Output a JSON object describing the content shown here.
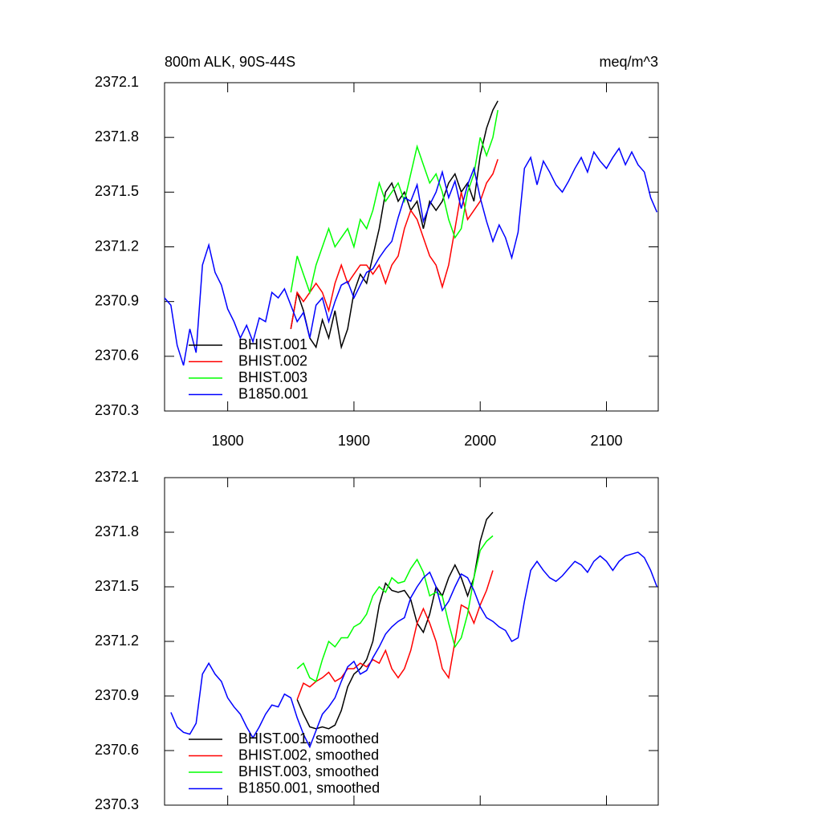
{
  "chart_data": [
    {
      "type": "line",
      "title": "800m ALK, 90S-44S",
      "units": "meq/m^3",
      "xlim": [
        1750,
        2141
      ],
      "xticks": [
        1800,
        1900,
        2000,
        2100
      ],
      "show_xtick_labels": true,
      "ylim": [
        2370.3,
        2372.1
      ],
      "yticks": [
        2370.3,
        2370.6,
        2370.9,
        2371.2,
        2371.5,
        2371.8,
        2372.1
      ],
      "legend": "lower left",
      "series": [
        {
          "name": "BHIST.001",
          "color": "#000000",
          "x": [
            1850,
            1855,
            1860,
            1865,
            1870,
            1875,
            1880,
            1885,
            1890,
            1895,
            1900,
            1905,
            1910,
            1915,
            1920,
            1925,
            1930,
            1935,
            1940,
            1945,
            1950,
            1955,
            1960,
            1965,
            1970,
            1975,
            1980,
            1985,
            1990,
            1995,
            2000,
            2005,
            2010,
            2014
          ],
          "values": [
            2370.75,
            2370.95,
            2370.85,
            2370.7,
            2370.65,
            2370.8,
            2370.7,
            2370.85,
            2370.65,
            2370.75,
            2370.95,
            2371.05,
            2371.0,
            2371.15,
            2371.3,
            2371.5,
            2371.55,
            2371.45,
            2371.5,
            2371.4,
            2371.45,
            2371.3,
            2371.45,
            2371.4,
            2371.45,
            2371.55,
            2371.6,
            2371.5,
            2371.55,
            2371.45,
            2371.7,
            2371.85,
            2371.95,
            2372.0
          ]
        },
        {
          "name": "BHIST.002",
          "color": "#ff0000",
          "x": [
            1850,
            1855,
            1860,
            1865,
            1870,
            1875,
            1880,
            1885,
            1890,
            1895,
            1900,
            1905,
            1910,
            1915,
            1920,
            1925,
            1930,
            1935,
            1940,
            1945,
            1950,
            1955,
            1960,
            1965,
            1970,
            1975,
            1980,
            1985,
            1990,
            1995,
            2000,
            2005,
            2010,
            2014
          ],
          "values": [
            2370.75,
            2370.95,
            2370.9,
            2370.95,
            2371.0,
            2370.95,
            2370.85,
            2371.0,
            2371.1,
            2371.0,
            2371.05,
            2371.1,
            2371.1,
            2371.05,
            2371.1,
            2371.0,
            2371.1,
            2371.15,
            2371.3,
            2371.4,
            2371.35,
            2371.25,
            2371.15,
            2371.1,
            2370.98,
            2371.1,
            2371.3,
            2371.5,
            2371.35,
            2371.4,
            2371.45,
            2371.55,
            2371.6,
            2371.68
          ]
        },
        {
          "name": "BHIST.003",
          "color": "#00ff00",
          "x": [
            1850,
            1855,
            1860,
            1865,
            1870,
            1875,
            1880,
            1885,
            1890,
            1895,
            1900,
            1905,
            1910,
            1915,
            1920,
            1925,
            1930,
            1935,
            1940,
            1945,
            1950,
            1955,
            1960,
            1965,
            1970,
            1975,
            1980,
            1985,
            1990,
            1995,
            2000,
            2005,
            2010,
            2014
          ],
          "values": [
            2370.95,
            2371.15,
            2371.05,
            2370.95,
            2371.1,
            2371.2,
            2371.3,
            2371.2,
            2371.25,
            2371.3,
            2371.2,
            2371.35,
            2371.3,
            2371.4,
            2371.55,
            2371.45,
            2371.5,
            2371.55,
            2371.45,
            2371.6,
            2371.75,
            2371.65,
            2371.55,
            2371.6,
            2371.5,
            2371.35,
            2371.25,
            2371.3,
            2371.5,
            2371.6,
            2371.8,
            2371.7,
            2371.8,
            2371.95
          ]
        },
        {
          "name": "B1850.001",
          "color": "#0000ff",
          "x": [
            1750,
            1755,
            1760,
            1765,
            1770,
            1775,
            1780,
            1785,
            1790,
            1795,
            1800,
            1805,
            1810,
            1815,
            1820,
            1825,
            1830,
            1835,
            1840,
            1845,
            1850,
            1855,
            1860,
            1865,
            1870,
            1875,
            1880,
            1885,
            1890,
            1895,
            1900,
            1905,
            1910,
            1915,
            1920,
            1925,
            1930,
            1935,
            1940,
            1945,
            1950,
            1955,
            1960,
            1965,
            1970,
            1975,
            1980,
            1985,
            1990,
            1995,
            2000,
            2005,
            2010,
            2015,
            2020,
            2025,
            2030,
            2035,
            2040,
            2045,
            2050,
            2055,
            2060,
            2065,
            2070,
            2075,
            2080,
            2085,
            2090,
            2095,
            2100,
            2105,
            2110,
            2115,
            2120,
            2125,
            2130,
            2135,
            2140
          ],
          "values": [
            2370.92,
            2370.88,
            2370.66,
            2370.55,
            2370.75,
            2370.62,
            2371.1,
            2371.21,
            2371.06,
            2370.99,
            2370.86,
            2370.79,
            2370.7,
            2370.77,
            2370.68,
            2370.81,
            2370.79,
            2370.95,
            2370.92,
            2370.97,
            2370.88,
            2370.79,
            2370.84,
            2370.7,
            2370.88,
            2370.92,
            2370.79,
            2370.9,
            2370.99,
            2371.01,
            2370.92,
            2370.99,
            2371.06,
            2371.08,
            2371.14,
            2371.19,
            2371.23,
            2371.36,
            2371.47,
            2371.45,
            2371.54,
            2371.34,
            2371.43,
            2371.5,
            2371.61,
            2371.47,
            2371.56,
            2371.41,
            2371.54,
            2371.63,
            2371.47,
            2371.34,
            2371.23,
            2371.32,
            2371.25,
            2371.14,
            2371.28,
            2371.63,
            2371.69,
            2371.54,
            2371.67,
            2371.61,
            2371.54,
            2371.5,
            2371.56,
            2371.63,
            2371.69,
            2371.61,
            2371.72,
            2371.67,
            2371.63,
            2371.69,
            2371.74,
            2371.65,
            2371.72,
            2371.65,
            2371.61,
            2371.47,
            2371.39
          ]
        }
      ]
    },
    {
      "type": "line",
      "xlim": [
        1750,
        2141
      ],
      "xticks": [
        1800,
        1900,
        2000,
        2100
      ],
      "show_xtick_labels": false,
      "ylim": [
        2370.3,
        2372.1
      ],
      "yticks": [
        2370.3,
        2370.6,
        2370.9,
        2371.2,
        2371.5,
        2371.8,
        2372.1
      ],
      "legend": "lower left",
      "series": [
        {
          "name": "BHIST.001, smoothed",
          "color": "#000000",
          "x": [
            1855,
            1860,
            1865,
            1870,
            1875,
            1880,
            1885,
            1890,
            1895,
            1900,
            1905,
            1910,
            1915,
            1920,
            1925,
            1930,
            1935,
            1940,
            1945,
            1950,
            1955,
            1960,
            1965,
            1970,
            1975,
            1980,
            1985,
            1990,
            1995,
            2000,
            2005,
            2010
          ],
          "values": [
            2370.88,
            2370.8,
            2370.73,
            2370.72,
            2370.73,
            2370.72,
            2370.74,
            2370.82,
            2370.95,
            2371.02,
            2371.05,
            2371.1,
            2371.2,
            2371.4,
            2371.52,
            2371.48,
            2371.47,
            2371.48,
            2371.43,
            2371.3,
            2371.25,
            2371.35,
            2371.5,
            2371.45,
            2371.55,
            2371.62,
            2371.55,
            2371.45,
            2371.55,
            2371.75,
            2371.87,
            2371.91
          ]
        },
        {
          "name": "BHIST.002, smoothed",
          "color": "#ff0000",
          "x": [
            1855,
            1860,
            1865,
            1870,
            1875,
            1880,
            1885,
            1890,
            1895,
            1900,
            1905,
            1910,
            1915,
            1920,
            1925,
            1930,
            1935,
            1940,
            1945,
            1950,
            1955,
            1960,
            1965,
            1970,
            1975,
            1980,
            1985,
            1990,
            1995,
            2000,
            2005,
            2010
          ],
          "values": [
            2370.88,
            2370.97,
            2370.95,
            2370.98,
            2371.0,
            2371.03,
            2370.98,
            2371.0,
            2371.05,
            2371.05,
            2371.08,
            2371.06,
            2371.1,
            2371.08,
            2371.15,
            2371.05,
            2371.0,
            2371.05,
            2371.15,
            2371.3,
            2371.38,
            2371.3,
            2371.2,
            2371.05,
            2371.0,
            2371.2,
            2371.4,
            2371.38,
            2371.3,
            2371.4,
            2371.48,
            2371.59
          ]
        },
        {
          "name": "BHIST.003, smoothed",
          "color": "#00ff00",
          "x": [
            1855,
            1860,
            1865,
            1870,
            1875,
            1880,
            1885,
            1890,
            1895,
            1900,
            1905,
            1910,
            1915,
            1920,
            1925,
            1930,
            1935,
            1940,
            1945,
            1950,
            1955,
            1960,
            1965,
            1970,
            1975,
            1980,
            1985,
            1990,
            1995,
            2000,
            2005,
            2010
          ],
          "values": [
            2371.05,
            2371.08,
            2371.0,
            2370.98,
            2371.1,
            2371.2,
            2371.17,
            2371.22,
            2371.22,
            2371.28,
            2371.3,
            2371.35,
            2371.45,
            2371.5,
            2371.47,
            2371.55,
            2371.52,
            2371.53,
            2371.6,
            2371.65,
            2371.58,
            2371.45,
            2371.47,
            2371.45,
            2371.3,
            2371.17,
            2371.22,
            2371.35,
            2371.55,
            2371.7,
            2371.75,
            2371.78
          ]
        },
        {
          "name": "B1850.001, smoothed",
          "color": "#0000ff",
          "x": [
            1755,
            1760,
            1765,
            1770,
            1775,
            1780,
            1785,
            1790,
            1795,
            1800,
            1805,
            1810,
            1815,
            1820,
            1825,
            1830,
            1835,
            1840,
            1845,
            1850,
            1855,
            1860,
            1865,
            1870,
            1875,
            1880,
            1885,
            1890,
            1895,
            1900,
            1905,
            1910,
            1915,
            1920,
            1925,
            1930,
            1935,
            1940,
            1945,
            1950,
            1955,
            1960,
            1965,
            1970,
            1975,
            1980,
            1985,
            1990,
            1995,
            2000,
            2005,
            2010,
            2015,
            2020,
            2025,
            2030,
            2035,
            2040,
            2045,
            2050,
            2055,
            2060,
            2065,
            2070,
            2075,
            2080,
            2085,
            2090,
            2095,
            2100,
            2105,
            2110,
            2115,
            2120,
            2125,
            2130,
            2135,
            2140
          ],
          "values": [
            2370.81,
            2370.73,
            2370.7,
            2370.69,
            2370.75,
            2371.02,
            2371.08,
            2371.02,
            2370.98,
            2370.89,
            2370.84,
            2370.8,
            2370.73,
            2370.67,
            2370.73,
            2370.8,
            2370.85,
            2370.84,
            2370.91,
            2370.89,
            2370.78,
            2370.69,
            2370.62,
            2370.71,
            2370.8,
            2370.84,
            2370.89,
            2370.98,
            2371.06,
            2371.09,
            2371.02,
            2371.04,
            2371.11,
            2371.17,
            2371.24,
            2371.28,
            2371.31,
            2371.33,
            2371.44,
            2371.5,
            2371.55,
            2371.58,
            2371.5,
            2371.37,
            2371.42,
            2371.5,
            2371.57,
            2371.55,
            2371.48,
            2371.39,
            2371.33,
            2371.31,
            2371.28,
            2371.26,
            2371.2,
            2371.22,
            2371.42,
            2371.59,
            2371.64,
            2371.59,
            2371.55,
            2371.53,
            2371.56,
            2371.6,
            2371.64,
            2371.62,
            2371.58,
            2371.64,
            2371.67,
            2371.64,
            2371.59,
            2371.64,
            2371.67,
            2371.68,
            2371.69,
            2371.66,
            2371.59,
            2371.5
          ]
        }
      ]
    }
  ]
}
